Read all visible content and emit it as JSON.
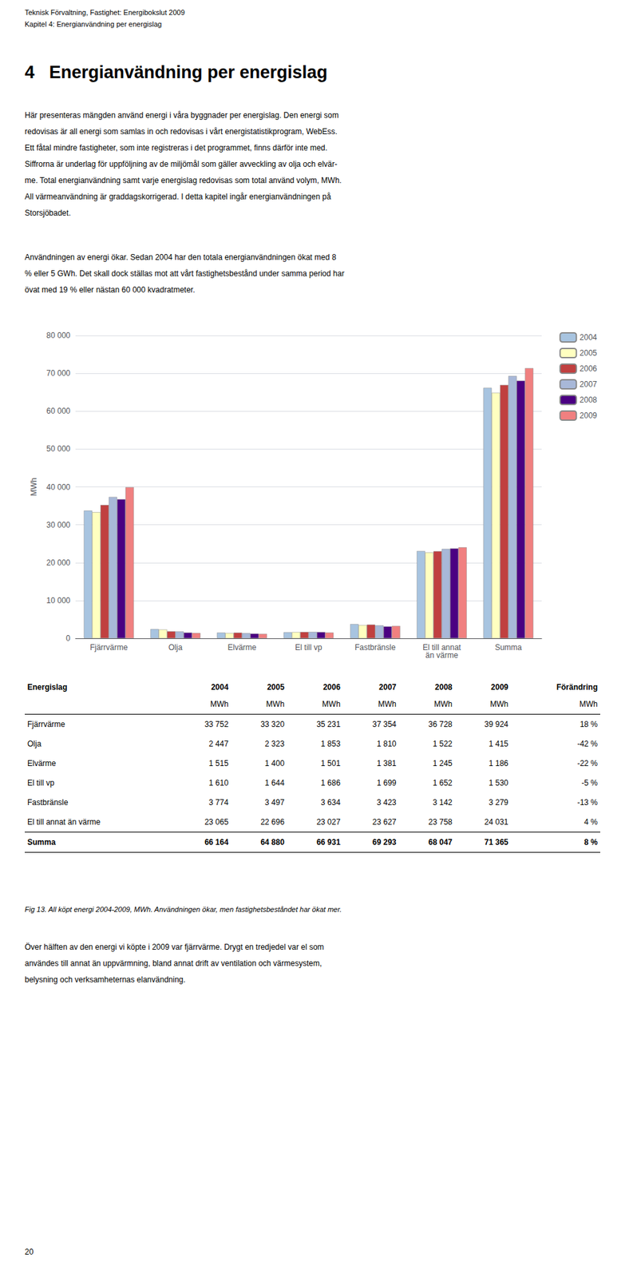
{
  "header": [
    "Teknisk Förvaltning, Fastighet: Energibokslut 2009",
    "Kapitel 4: Energianvändning per energislag"
  ],
  "section_title": "4   Energianvändning per energislag",
  "paragraphs_before": [
    "Här presenteras mängden använd energi i våra byggnader per energislag. Den energi som\nredovisas är all energi som samlas in och redovisas i vårt energistatistikprogram, WebEss.\nEtt fåtal mindre fastigheter, som inte registreras i det programmet, finns därför inte med.\nSiffrorna är underlag för uppföljning av de miljömål som gäller avveckling av olja och elvär-\nme. Total energianvändning samt varje energislag redovisas som total använd volym, MWh.\nAll värmeanvändning är graddagskorrigerad. I detta kapitel ingår energianvändningen på\nStorsjöbadet.",
    "Användningen av energi ökar. Sedan 2004 har den totala energianvändningen ökat med 8\n% eller 5 GWh. Det skall dock ställas mot att vårt fastighetsbestånd under samma period har\növat med 19 % eller nästan 60 000 kvadratmeter."
  ],
  "chart_data": {
    "type": "bar",
    "categories": [
      "Fjärrvärme",
      "Olja",
      "Elvärme",
      "El till vp",
      "Fastbränsle",
      "El till annat\nän värme",
      "Summa"
    ],
    "series": [
      {
        "name": "2004",
        "color": "#A8C4E0",
        "values": [
          33752,
          2447,
          1515,
          1610,
          3774,
          23065,
          66164
        ]
      },
      {
        "name": "2005",
        "color": "#FFFFC0",
        "values": [
          33320,
          2323,
          1400,
          1644,
          3497,
          22696,
          64880
        ]
      },
      {
        "name": "2006",
        "color": "#C04040",
        "values": [
          35231,
          1853,
          1501,
          1686,
          3634,
          23027,
          66931
        ]
      },
      {
        "name": "2007",
        "color": "#A8B8D8",
        "values": [
          37354,
          1810,
          1381,
          1699,
          3423,
          23627,
          69293
        ]
      },
      {
        "name": "2008",
        "color": "#4B0082",
        "values": [
          36728,
          1522,
          1245,
          1652,
          3142,
          23758,
          68047
        ]
      },
      {
        "name": "2009",
        "color": "#F08080",
        "values": [
          39924,
          1415,
          1186,
          1530,
          3279,
          24031,
          71365
        ]
      }
    ],
    "ylabel": "MWh",
    "ylim": [
      0,
      80000
    ],
    "yticks": [
      0,
      {
        "value": 10000,
        "label": "10 000"
      },
      {
        "value": 20000,
        "label": "20 000"
      },
      {
        "value": 30000,
        "label": "30 000"
      },
      {
        "value": 40000,
        "label": "40 000"
      },
      {
        "value": 50000,
        "label": "50 000"
      },
      {
        "value": 60000,
        "label": "60 000"
      },
      {
        "value": 70000,
        "label": "70 000"
      },
      {
        "value": 80000,
        "label": "80 000"
      }
    ],
    "grid": true,
    "legend": "right"
  },
  "table": {
    "headers": [
      "Energislag",
      "2004",
      "2005",
      "2006",
      "2007",
      "2008",
      "2009",
      "Förändring"
    ],
    "subheaders": [
      null,
      "MWh",
      "MWh",
      "MWh",
      "MWh",
      "MWh",
      "MWh",
      "MWh"
    ],
    "rows": [
      [
        "Fjärrvärme",
        "33 752",
        "33 320",
        "35 231",
        "37 354",
        "36 728",
        "39 924",
        "18 %"
      ],
      [
        "Olja",
        "2 447",
        "2 323",
        "1 853",
        "1 810",
        "1 522",
        "1 415",
        "-42 %"
      ],
      [
        "Elvärme",
        "1 515",
        "1 400",
        "1 501",
        "1 381",
        "1 245",
        "1 186",
        "-22 %"
      ],
      [
        "El till vp",
        "1 610",
        "1 644",
        "1 686",
        "1 699",
        "1 652",
        "1 530",
        "-5 %"
      ],
      [
        "Fastbränsle",
        "3 774",
        "3 497",
        "3 634",
        "3 423",
        "3 142",
        "3 279",
        "-13 %"
      ],
      [
        "El till annat än värme",
        "23 065",
        "22 696",
        "23 027",
        "23 627",
        "23 758",
        "24 031",
        "4 %"
      ]
    ],
    "total_row": [
      "Summa",
      "66 164",
      "64 880",
      "66 931",
      "69 293",
      "68 047",
      "71 365",
      "8 %"
    ]
  },
  "caption": "Fig 13. All köpt energi 2004-2009, MWh. Användningen ökar, men fastighetsbeståndet har ökat mer.",
  "paragraphs_after": [
    "Över hälften av den energi vi köpte i 2009 var fjärrvärme. Drygt en tredjedel var el som\nanvändes till annat än uppvärmning, bland annat drift av ventilation och värmesystem,\nbelysning och verksamheternas elanvändning."
  ],
  "page_number": "20"
}
